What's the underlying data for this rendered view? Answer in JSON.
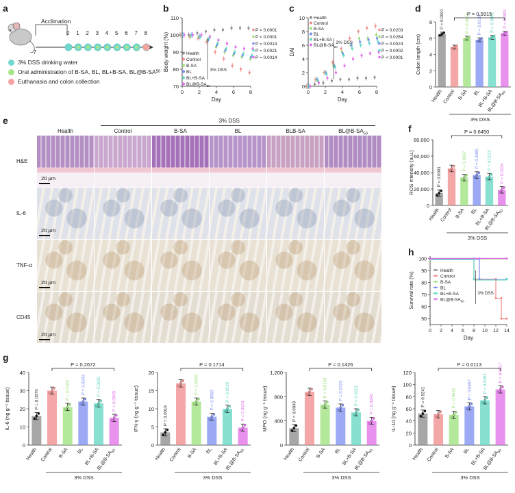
{
  "panels": {
    "a": "a",
    "b": "b",
    "c": "c",
    "d": "d",
    "e": "e",
    "f": "f",
    "g": "g",
    "h": "h"
  },
  "panel_a": {
    "acclimation": "Acclimation",
    "day_start": "−7",
    "days": [
      "0",
      "1",
      "2",
      "3",
      "4",
      "5",
      "6",
      "7",
      "8"
    ],
    "legend": [
      {
        "label": "3% DSS drinking water",
        "color": "#6fd9cf"
      },
      {
        "label": "Oral administration of B-SA, BL, BL+B-SA, BL@B-SA",
        "sub": "50",
        "color": "#a7e38a"
      },
      {
        "label": "Euthanasia and colon collection",
        "color": "#f4a3a0"
      }
    ]
  },
  "groups": [
    {
      "name": "Health",
      "color": "#8a8a8a"
    },
    {
      "name": "Control",
      "color": "#f08a8a"
    },
    {
      "name": "B-SA",
      "color": "#9be07a"
    },
    {
      "name": "BL",
      "color": "#7b8cf0"
    },
    {
      "name": "BL+B-SA",
      "color": "#5fd6c0"
    },
    {
      "name": "BL@B-SA50",
      "color": "#e06de8"
    }
  ],
  "dss_label": "3% DSS",
  "panel_b": {
    "ylabel": "Body weight (%)",
    "xlabel": "Day",
    "yticks": [
      "70",
      "80",
      "90",
      "100",
      "110"
    ],
    "xticks": [
      "0",
      "2",
      "4",
      "6",
      "8"
    ],
    "pvalues": [
      "P < 0.0001",
      "P < 0.0001",
      "P = 0.0014",
      "P = 0.0021",
      "P = 0.0014"
    ],
    "dss": "3% DSS",
    "legend": [
      "Health",
      "Control",
      "B-SA",
      "BL",
      "BL+B-SA",
      "BL@B-SA"
    ]
  },
  "panel_c": {
    "ylabel": "DAI",
    "xlabel": "Day",
    "yticks": [
      "0",
      "2",
      "4",
      "6",
      "8",
      "10"
    ],
    "xticks": [
      "0",
      "2",
      "4",
      "6",
      "8"
    ],
    "pvalues": [
      "P = 0.0203",
      "P = 0.0264",
      "P = 0.0024",
      "P = 0.0002",
      "P < 0.0001"
    ],
    "dss": "3% DSS",
    "legend": [
      "Health",
      "Control",
      "B-SA",
      "BL",
      "BL+B-SA",
      "BL@B-SA"
    ]
  },
  "panel_d": {
    "ylabel": "Colon length (cm)",
    "yticks": [
      "0",
      "2",
      "4",
      "6",
      "8"
    ],
    "top_p": "P = 0.5915",
    "bar_p": [
      "P = 0.0001",
      "",
      "P = 0.0019",
      "P = 0.0159",
      "P = 0.0002",
      "P = 0.0003"
    ]
  },
  "panel_e": {
    "cols": [
      "Health",
      "Control",
      "B-SA",
      "BL",
      "BLB-SA",
      "BL@B-SA50"
    ],
    "rows": [
      "H&E",
      "IL-6",
      "TNF-α",
      "CD45"
    ],
    "scale": "20 μm"
  },
  "panel_f": {
    "ylabel": "ROS intensity (a.u.)",
    "yticks": [
      "0",
      "20,000",
      "40,000",
      "60,000",
      "80,000"
    ],
    "top_p": "P = 0.6450",
    "bar_p": [
      "P = 0.0001",
      "",
      "P = 0.0097",
      "P = 0.1885",
      "P = 0.0215",
      "P = 0.0034"
    ]
  },
  "panel_h": {
    "ylabel": "Survival rate (%)",
    "xlabel": "Day",
    "yticks": [
      "50",
      "60",
      "70",
      "80",
      "90",
      "100"
    ],
    "xticks": [
      "0",
      "2",
      "4",
      "6",
      "8",
      "10",
      "12",
      "14"
    ],
    "dss": "3% DSS",
    "legend": [
      "Health",
      "Control",
      "B-SA",
      "BL",
      "BL+B-SA",
      "BL@B-SA"
    ]
  },
  "panel_g": [
    {
      "ylabel": "IL-6 (ng g⁻¹ tissue)",
      "yticks": [
        "0",
        "10",
        "20",
        "30",
        "40"
      ],
      "top_p": "P = 0.2672",
      "bar_p": [
        "P = 0.0070",
        "",
        "P = 0.0106",
        "P = 0.0243",
        "P = 0.0935",
        "P = 0.0009"
      ]
    },
    {
      "ylabel": "IFN-γ (ng g⁻¹ tissue)",
      "yticks": [
        "0",
        "5",
        "10",
        "15",
        "20"
      ],
      "top_p": "P = 0.1714",
      "bar_p": [
        "P = 0.0019",
        "",
        "P = 0.0468",
        "P = 0.0060",
        "P = 0.0526",
        "P = 0.0024"
      ]
    },
    {
      "ylabel": "MPO (ng g⁻¹ tissue)",
      "yticks": [
        "0",
        "400",
        "800",
        "1,200"
      ],
      "top_p": "P = 0.1426",
      "bar_p": [
        "P = 0.0049",
        "",
        "P = 0.0163",
        "P = 0.0723",
        "P = 0.0221",
        "P = 0.0094"
      ]
    },
    {
      "ylabel": "IL-10 (ng g⁻¹ tissue)",
      "yticks": [
        "0",
        "20",
        "40",
        "60",
        "80",
        "100",
        "120"
      ],
      "top_p": "P = 0.0113",
      "bar_p": [
        "P = 0.9241",
        "",
        "P = 0.9642",
        "P = 0.0667",
        "P = 0.0093",
        "P = 0.0017"
      ]
    }
  ],
  "chart_data": [
    {
      "type": "scatter",
      "id": "b",
      "ylabel": "Body weight (%)",
      "xlabel": "Day",
      "x": [
        0,
        1,
        2,
        3,
        4,
        5,
        6,
        7,
        8
      ],
      "ylim": [
        70,
        110
      ],
      "series": [
        {
          "name": "Health",
          "values": [
            100,
            100,
            101,
            102,
            103,
            103,
            104,
            104,
            104
          ]
        },
        {
          "name": "Control",
          "values": [
            100,
            99,
            98,
            96,
            90,
            86,
            82,
            80,
            78
          ]
        },
        {
          "name": "B-SA",
          "values": [
            100,
            99,
            99,
            97,
            93,
            90,
            88,
            87,
            86
          ]
        },
        {
          "name": "BL",
          "values": [
            100,
            100,
            99,
            97,
            94,
            91,
            89,
            88,
            87
          ]
        },
        {
          "name": "BL+B-SA",
          "values": [
            100,
            100,
            99,
            98,
            95,
            92,
            90,
            89,
            88
          ]
        },
        {
          "name": "BL@B-SA50",
          "values": [
            100,
            100,
            100,
            99,
            97,
            95,
            93,
            92,
            92
          ]
        }
      ]
    },
    {
      "type": "scatter",
      "id": "c",
      "ylabel": "DAI",
      "xlabel": "Day",
      "x": [
        0,
        1,
        2,
        3,
        4,
        5,
        6,
        7,
        8
      ],
      "ylim": [
        0,
        10
      ],
      "series": [
        {
          "name": "Health",
          "values": [
            0,
            0.3,
            0.5,
            0.8,
            1,
            1,
            1.2,
            1.2,
            1.3
          ]
        },
        {
          "name": "Control",
          "values": [
            0,
            1,
            2,
            3.5,
            5.5,
            7,
            8,
            8.5,
            8.8
          ]
        },
        {
          "name": "B-SA",
          "values": [
            0,
            1,
            2,
            3,
            5,
            6,
            7,
            7,
            7.5
          ]
        },
        {
          "name": "BL",
          "values": [
            0,
            1,
            2,
            3,
            4.8,
            6,
            6.5,
            6.8,
            7
          ]
        },
        {
          "name": "BL+B-SA",
          "values": [
            0,
            0.8,
            1.8,
            2.8,
            4.5,
            5.5,
            6,
            6.3,
            6.5
          ]
        },
        {
          "name": "BL@B-SA50",
          "values": [
            0,
            0.5,
            1.2,
            2,
            3,
            4,
            4.5,
            4.8,
            5
          ]
        }
      ]
    },
    {
      "type": "bar",
      "id": "d",
      "ylabel": "Colon length (cm)",
      "ylim": [
        0,
        8
      ],
      "categories": [
        "Health",
        "Control",
        "B-SA",
        "BL",
        "BL+B-SA",
        "BL@B-SA50"
      ],
      "values": [
        6.5,
        4.9,
        6.0,
        5.8,
        6.1,
        6.6
      ]
    },
    {
      "type": "bar",
      "id": "f",
      "ylabel": "ROS intensity (a.u.)",
      "ylim": [
        0,
        80000
      ],
      "categories": [
        "Health",
        "Control",
        "B-SA",
        "BL",
        "BL+B-SA",
        "BL@B-SA50"
      ],
      "values": [
        15000,
        45000,
        34000,
        37000,
        35000,
        19000
      ]
    },
    {
      "type": "line",
      "id": "h",
      "ylabel": "Survival rate (%)",
      "xlabel": "Day",
      "ylim": [
        45,
        102
      ],
      "series": [
        {
          "name": "Health",
          "x": [
            0,
            14
          ],
          "values": [
            100,
            100
          ]
        },
        {
          "name": "Control",
          "x": [
            0,
            8,
            8,
            12,
            12,
            13,
            13,
            14
          ],
          "values": [
            100,
            100,
            83,
            83,
            67,
            67,
            50,
            50
          ]
        },
        {
          "name": "B-SA",
          "x": [
            0,
            14
          ],
          "values": [
            100,
            100
          ]
        },
        {
          "name": "BL",
          "x": [
            0,
            9,
            9,
            14
          ],
          "values": [
            100,
            100,
            83,
            83
          ]
        },
        {
          "name": "BL+B-SA",
          "x": [
            0,
            8,
            8,
            14
          ],
          "values": [
            100,
            100,
            83,
            83
          ]
        },
        {
          "name": "BL@B-SA50",
          "x": [
            0,
            14
          ],
          "values": [
            100,
            100
          ]
        }
      ]
    },
    {
      "type": "bar",
      "id": "g1",
      "ylabel": "IL-6 (ng g⁻¹ tissue)",
      "ylim": [
        0,
        40
      ],
      "categories": [
        "Health",
        "Control",
        "B-SA",
        "BL",
        "BL+B-SA",
        "BL@B-SA50"
      ],
      "values": [
        16,
        30,
        21,
        24,
        23,
        15
      ]
    },
    {
      "type": "bar",
      "id": "g2",
      "ylabel": "IFN-γ (ng g⁻¹ tissue)",
      "ylim": [
        0,
        20
      ],
      "categories": [
        "Health",
        "Control",
        "B-SA",
        "BL",
        "BL+B-SA",
        "BL@B-SA50"
      ],
      "values": [
        3.5,
        17,
        12,
        7.8,
        10,
        4.8
      ]
    },
    {
      "type": "bar",
      "id": "g3",
      "ylabel": "MPO (ng g⁻¹ tissue)",
      "ylim": [
        0,
        1200
      ],
      "categories": [
        "Health",
        "Control",
        "B-SA",
        "BL",
        "BL+B-SA",
        "BL@B-SA50"
      ],
      "values": [
        280,
        880,
        670,
        620,
        540,
        400
      ]
    },
    {
      "type": "bar",
      "id": "g4",
      "ylabel": "IL-10 (ng g⁻¹ tissue)",
      "ylim": [
        0,
        120
      ],
      "categories": [
        "Health",
        "Control",
        "B-SA",
        "BL",
        "BL+B-SA",
        "BL@B-SA50"
      ],
      "values": [
        52,
        51,
        50,
        64,
        74,
        92
      ]
    }
  ]
}
